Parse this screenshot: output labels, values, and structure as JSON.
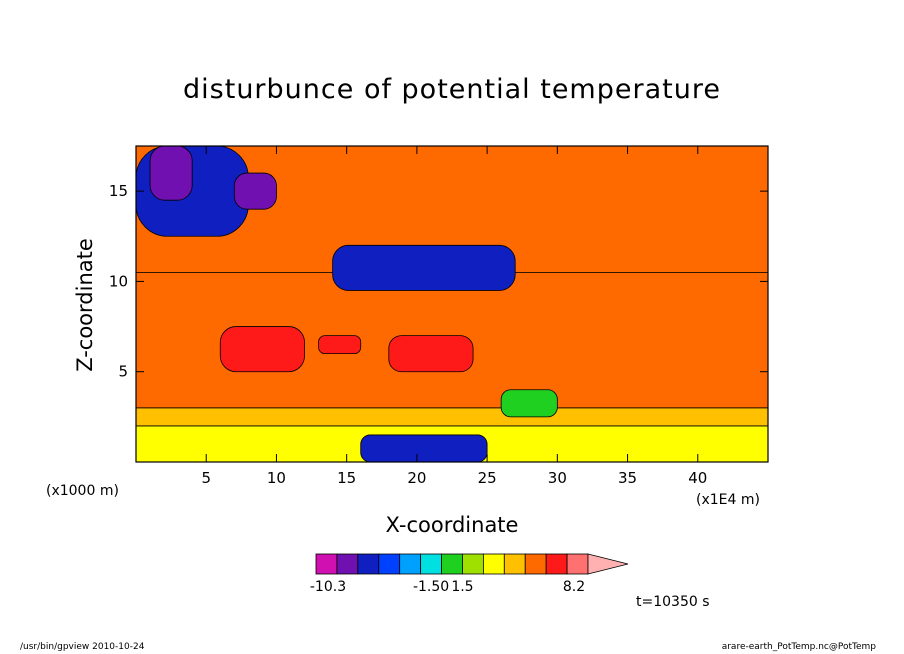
{
  "footer": {
    "left": "/usr/bin/gpview   2010-10-24",
    "right": "arare-earth_PotTemp.nc@PotTemp"
  },
  "time_label": "t=10350 s",
  "chart_data": {
    "type": "heatmap",
    "title": "disturbunce of potential temperature",
    "xlabel": "X-coordinate",
    "ylabel": "Z-coordinate",
    "x_unit_left": "(x1000 m)",
    "x_unit_right": "(x1E4 m)",
    "xlim": [
      0,
      45
    ],
    "ylim": [
      0,
      17.5
    ],
    "x_ticks": [
      5,
      10,
      15,
      20,
      25,
      30,
      35,
      40
    ],
    "y_ticks": [
      5,
      10,
      15
    ],
    "colorbar": {
      "labels": [
        "-10.3",
        "-1.50",
        "1.5",
        "8.2"
      ],
      "colors": [
        "#d010b0",
        "#7010b0",
        "#1020c0",
        "#0040ff",
        "#00a0ff",
        "#00e0e0",
        "#20d020",
        "#a0e000",
        "#ffff00",
        "#ffc000",
        "#ff6a00",
        "#ff1a1a",
        "#ff7070",
        "#ffb0b0"
      ]
    },
    "regions": [
      {
        "level": "orange",
        "x": [
          0,
          45
        ],
        "y": [
          0,
          17.5
        ]
      },
      {
        "level": "yellow",
        "x": [
          0,
          45
        ],
        "y": [
          0,
          2.0
        ]
      },
      {
        "level": "light-orange",
        "x": [
          0,
          45
        ],
        "y": [
          2.0,
          3.0
        ]
      },
      {
        "level": "orange",
        "x": [
          0,
          45
        ],
        "y": [
          3.0,
          10.5
        ]
      },
      {
        "level": "red",
        "x": [
          6,
          12
        ],
        "y": [
          5.0,
          7.5
        ]
      },
      {
        "level": "red",
        "x": [
          13,
          16
        ],
        "y": [
          6.0,
          7.0
        ]
      },
      {
        "level": "red",
        "x": [
          18,
          24
        ],
        "y": [
          5.0,
          7.0
        ]
      },
      {
        "level": "blue",
        "x": [
          0,
          8
        ],
        "y": [
          12.5,
          17.5
        ]
      },
      {
        "level": "purple",
        "x": [
          1,
          4
        ],
        "y": [
          14.5,
          17.5
        ]
      },
      {
        "level": "purple",
        "x": [
          7,
          10
        ],
        "y": [
          14.0,
          16.0
        ]
      },
      {
        "level": "blue",
        "x": [
          14,
          27
        ],
        "y": [
          9.5,
          12.0
        ]
      },
      {
        "level": "blue",
        "x": [
          16,
          25
        ],
        "y": [
          0,
          1.5
        ]
      },
      {
        "level": "green",
        "x": [
          26,
          30
        ],
        "y": [
          2.5,
          4.0
        ]
      }
    ]
  }
}
